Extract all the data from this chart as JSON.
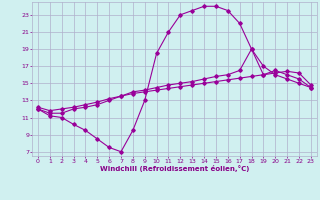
{
  "bg_color": "#d0f0f0",
  "line_color": "#990099",
  "marker_color": "#990099",
  "grid_color": "#b0b0cc",
  "xlabel": "Windchill (Refroidissement éolien,°C)",
  "xlabel_color": "#880088",
  "tick_color": "#880088",
  "xlim": [
    -0.5,
    23.5
  ],
  "ylim": [
    6.5,
    24.5
  ],
  "xticks": [
    0,
    1,
    2,
    3,
    4,
    5,
    6,
    7,
    8,
    9,
    10,
    11,
    12,
    13,
    14,
    15,
    16,
    17,
    18,
    19,
    20,
    21,
    22,
    23
  ],
  "yticks": [
    7,
    9,
    11,
    13,
    15,
    17,
    19,
    21,
    23
  ],
  "curve1_x": [
    0,
    1,
    2,
    3,
    4,
    5,
    6,
    7,
    8,
    9,
    10,
    11,
    12,
    13,
    14,
    15,
    16,
    17,
    18,
    19,
    20,
    21,
    22,
    23
  ],
  "curve1_y": [
    12.0,
    11.2,
    11.0,
    10.2,
    9.5,
    8.5,
    7.5,
    7.0,
    9.5,
    13.0,
    18.5,
    21.0,
    23.0,
    23.5,
    24.0,
    24.0,
    23.5,
    22.0,
    19.0,
    17.0,
    16.0,
    15.5,
    15.0,
    14.5
  ],
  "curve2_x": [
    0,
    1,
    2,
    3,
    4,
    5,
    6,
    7,
    8,
    9,
    10,
    11,
    12,
    13,
    14,
    15,
    16,
    17,
    18,
    19,
    20,
    21,
    22,
    23
  ],
  "curve2_y": [
    12.0,
    11.5,
    11.5,
    12.0,
    12.2,
    12.5,
    13.0,
    13.5,
    14.0,
    14.2,
    14.5,
    14.8,
    15.0,
    15.2,
    15.5,
    15.8,
    16.0,
    16.5,
    19.0,
    16.0,
    16.5,
    16.0,
    15.5,
    14.5
  ],
  "curve3_x": [
    0,
    1,
    2,
    3,
    4,
    5,
    6,
    7,
    8,
    9,
    10,
    11,
    12,
    13,
    14,
    15,
    16,
    17,
    18,
    19,
    20,
    21,
    22,
    23
  ],
  "curve3_y": [
    12.2,
    11.8,
    12.0,
    12.2,
    12.5,
    12.8,
    13.2,
    13.5,
    13.8,
    14.0,
    14.2,
    14.4,
    14.6,
    14.8,
    15.0,
    15.2,
    15.4,
    15.6,
    15.8,
    16.0,
    16.2,
    16.4,
    16.2,
    14.8
  ]
}
